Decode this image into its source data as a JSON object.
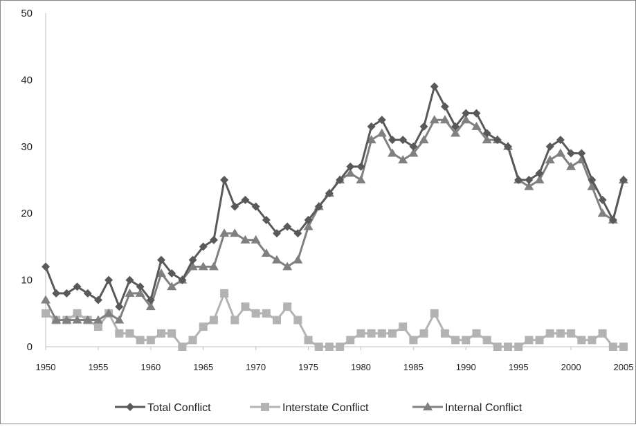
{
  "chart_data": {
    "type": "line",
    "title": "",
    "xlabel": "",
    "ylabel": "",
    "ylim": [
      0,
      50
    ],
    "xlim": [
      1950,
      2005
    ],
    "y_ticks": [
      "0",
      "10",
      "20",
      "30",
      "40",
      "50"
    ],
    "x_ticks": [
      "1950",
      "1955",
      "1960",
      "1965",
      "1970",
      "1975",
      "1980",
      "1985",
      "1990",
      "1995",
      "2000",
      "2005"
    ],
    "grid": false,
    "legend_position": "bottom",
    "x": [
      1950,
      1951,
      1952,
      1953,
      1954,
      1955,
      1956,
      1957,
      1958,
      1959,
      1960,
      1961,
      1962,
      1963,
      1964,
      1965,
      1966,
      1967,
      1968,
      1969,
      1970,
      1971,
      1972,
      1973,
      1974,
      1975,
      1976,
      1977,
      1978,
      1979,
      1980,
      1981,
      1982,
      1983,
      1984,
      1985,
      1986,
      1987,
      1988,
      1989,
      1990,
      1991,
      1992,
      1993,
      1994,
      1995,
      1996,
      1997,
      1998,
      1999,
      2000,
      2001,
      2002,
      2003,
      2004,
      2005
    ],
    "series": [
      {
        "name": "Total Conflict",
        "color": "#595959",
        "marker": "diamond",
        "values": [
          12,
          8,
          8,
          9,
          8,
          7,
          10,
          6,
          10,
          9,
          7,
          13,
          11,
          10,
          13,
          15,
          16,
          25,
          21,
          22,
          21,
          19,
          17,
          18,
          17,
          19,
          21,
          23,
          25,
          27,
          27,
          33,
          34,
          31,
          31,
          30,
          33,
          39,
          36,
          33,
          35,
          35,
          32,
          31,
          30,
          25,
          25,
          26,
          30,
          31,
          29,
          29,
          25,
          22,
          19,
          25
        ]
      },
      {
        "name": "Interstate Conflict",
        "color": "#b3b3b3",
        "marker": "square",
        "values": [
          5,
          4,
          4,
          5,
          4,
          3,
          5,
          2,
          2,
          1,
          1,
          2,
          2,
          0,
          1,
          3,
          4,
          8,
          4,
          6,
          5,
          5,
          4,
          6,
          4,
          1,
          0,
          0,
          0,
          1,
          2,
          2,
          2,
          2,
          3,
          1,
          2,
          5,
          2,
          1,
          1,
          2,
          1,
          0,
          0,
          0,
          1,
          1,
          2,
          2,
          2,
          1,
          1,
          2,
          0,
          0
        ]
      },
      {
        "name": "Internal Conflict",
        "color": "#808080",
        "marker": "triangle",
        "values": [
          7,
          4,
          4,
          4,
          4,
          4,
          5,
          4,
          8,
          8,
          6,
          11,
          9,
          10,
          12,
          12,
          12,
          17,
          17,
          16,
          16,
          14,
          13,
          12,
          13,
          18,
          21,
          23,
          25,
          26,
          25,
          31,
          32,
          29,
          28,
          29,
          31,
          34,
          34,
          32,
          34,
          33,
          31,
          31,
          30,
          25,
          24,
          25,
          28,
          29,
          27,
          28,
          24,
          20,
          19,
          25
        ]
      }
    ]
  }
}
